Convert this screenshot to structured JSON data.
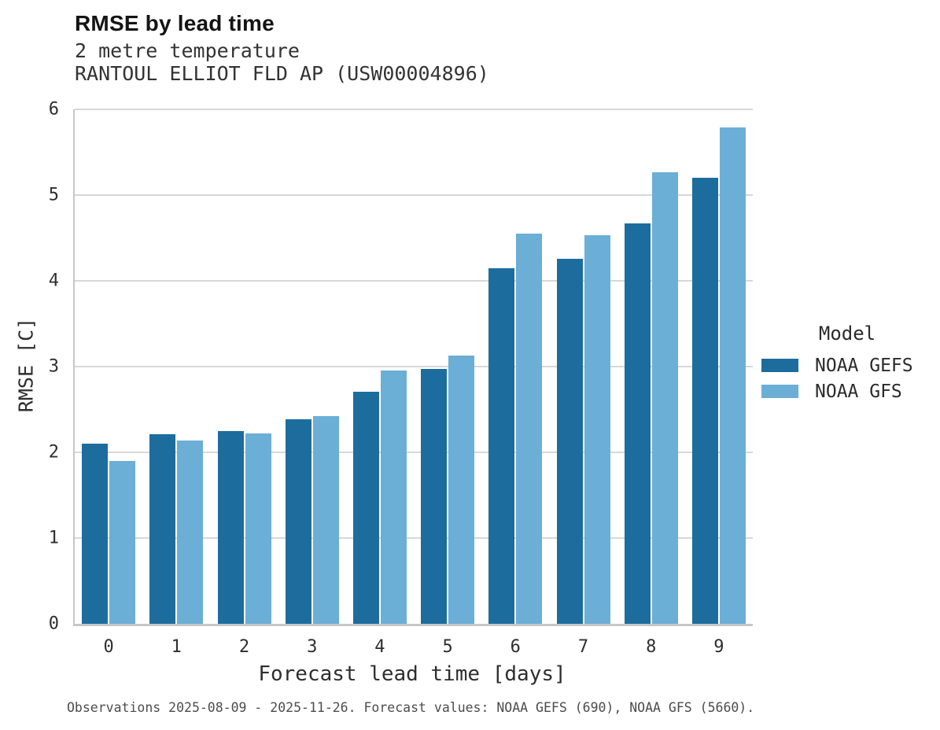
{
  "header": {
    "title": "RMSE by lead time",
    "subtitle1": "2 metre temperature",
    "subtitle2": "RANTOUL ELLIOT FLD AP (USW00004896)"
  },
  "chart_data": {
    "type": "bar",
    "title": "RMSE by lead time",
    "subtitle": "2 metre temperature — RANTOUL ELLIOT FLD AP (USW00004896)",
    "xlabel": "Forecast lead time [days]",
    "ylabel": "RMSE [C]",
    "categories": [
      "0",
      "1",
      "2",
      "3",
      "4",
      "5",
      "6",
      "7",
      "8",
      "9"
    ],
    "series": [
      {
        "name": "NOAA GEFS",
        "color": "#1c6d9e",
        "values": [
          2.1,
          2.21,
          2.25,
          2.39,
          2.71,
          2.97,
          4.15,
          4.26,
          4.67,
          5.2
        ]
      },
      {
        "name": "NOAA GFS",
        "color": "#6baed6",
        "values": [
          1.9,
          2.14,
          2.22,
          2.42,
          2.95,
          3.13,
          4.55,
          4.53,
          5.27,
          5.79
        ]
      }
    ],
    "ylim": [
      0,
      6
    ],
    "yticks": [
      0,
      1,
      2,
      3,
      4,
      5,
      6
    ],
    "grid": true,
    "legend_title": "Model",
    "legend_position": "right"
  },
  "footer": {
    "text": "Observations 2025-08-09 - 2025-11-26. Forecast values: NOAA GEFS (690), NOAA GFS (5660)."
  },
  "colors": {
    "gefs": "#1c6d9e",
    "gfs": "#6baed6",
    "grid": "#d8d8d8",
    "spine": "#c7c7c7"
  }
}
